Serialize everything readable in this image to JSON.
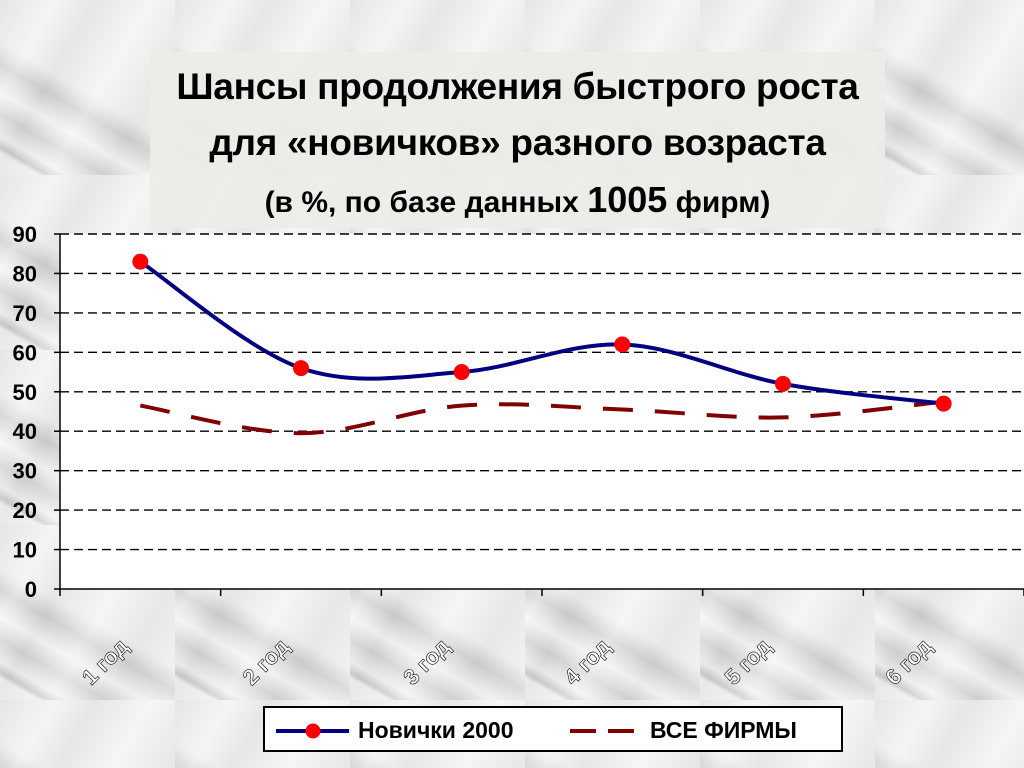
{
  "title": {
    "line1": "Шансы продолжения быстрого роста",
    "line2": "для «новичков» разного возраста",
    "line3_pre": "(в %, по базе данных ",
    "line3_num": "1005",
    "line3_post": " фирм)"
  },
  "chart_data": {
    "type": "line",
    "categories": [
      "1 год",
      "2 год",
      "3 год",
      "4 год",
      "5 год",
      "6 год"
    ],
    "series": [
      {
        "name": "Новички 2000",
        "values": [
          83,
          56,
          55,
          62,
          52,
          47
        ],
        "color": "#000080",
        "style": "solid-with-markers",
        "marker_color": "#ff0000"
      },
      {
        "name": "ВСЕ ФИРМЫ",
        "values": [
          46.5,
          39.5,
          46.5,
          45.5,
          43.5,
          47.5
        ],
        "color": "#800000",
        "style": "dashed"
      }
    ],
    "ylim": [
      0,
      90
    ],
    "yticks": [
      0,
      10,
      20,
      30,
      40,
      50,
      60,
      70,
      80,
      90
    ],
    "grid": "dashed horizontal",
    "legend_position": "bottom"
  }
}
